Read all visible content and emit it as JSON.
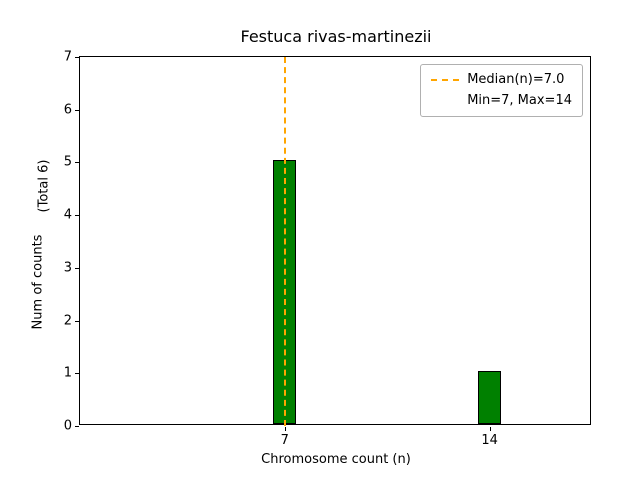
{
  "chart_data": {
    "type": "bar",
    "title": "Festuca rivas-martinezii",
    "xlabel": "Chromosome count (n)",
    "ylabel": "Num of counts",
    "ylabel_secondary": "(Total 6)",
    "x": [
      7,
      14
    ],
    "values": [
      5,
      1
    ],
    "total": 6,
    "xlim": [
      0,
      17.5
    ],
    "ylim": [
      0,
      7
    ],
    "xticks": [
      7,
      14
    ],
    "yticks": [
      0,
      1,
      2,
      3,
      4,
      5,
      6,
      7
    ],
    "bar_width_units": 0.8,
    "bar_color": "#008000",
    "bar_edge_color": "#000000",
    "grid": false,
    "median_line": {
      "x": 7,
      "value_label": "7.0",
      "color": "#FFA500",
      "style": "dashed"
    },
    "legend": {
      "position": "upper-right",
      "entries": [
        {
          "label": "Median(n)=7.0",
          "handle": "dashed-line",
          "color": "#FFA500"
        },
        {
          "label": "Min=7, Max=14",
          "handle": "none",
          "color": ""
        }
      ]
    }
  }
}
